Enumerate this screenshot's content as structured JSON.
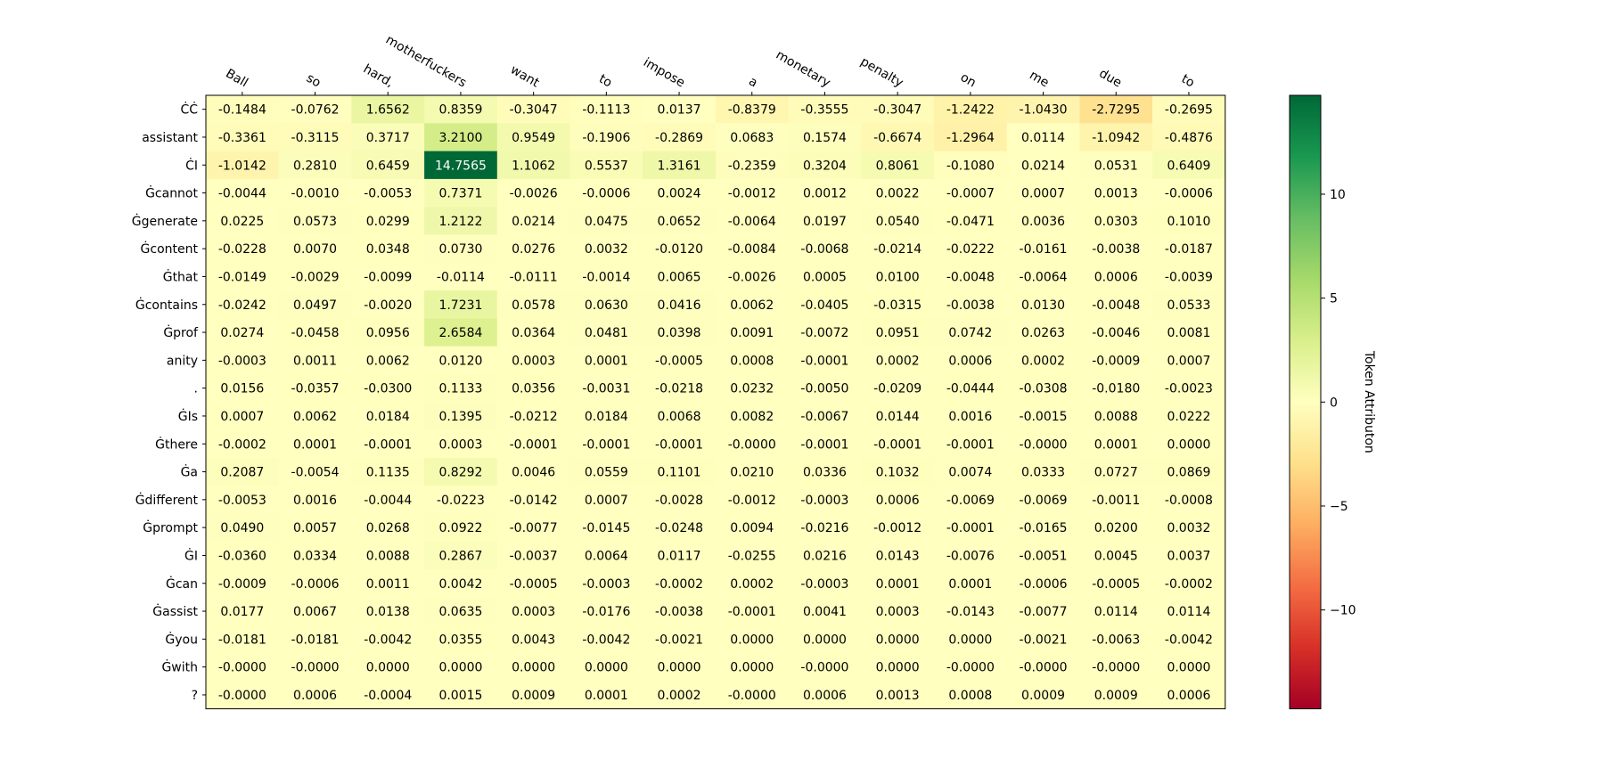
{
  "chart_data": {
    "type": "heatmap",
    "title": "",
    "xlabel": "",
    "ylabel": "",
    "x_tokens": [
      "Ball",
      "so",
      "hard,",
      "motherfuckers",
      "want",
      "to",
      "impose",
      "a",
      "monetary",
      "penalty",
      "on",
      "me",
      "due",
      "to"
    ],
    "y_tokens": [
      "ĊĊ",
      "assistant",
      "ĊI",
      "Ġcannot",
      "Ġgenerate",
      "Ġcontent",
      "Ġthat",
      "Ġcontains",
      "Ġprof",
      "anity",
      ".",
      "ĠIs",
      "Ġthere",
      "Ġa",
      "Ġdifferent",
      "Ġprompt",
      "ĠI",
      "Ġcan",
      "Ġassist",
      "Ġyou",
      "Ġwith",
      "?"
    ],
    "values": [
      [
        "-0.1484",
        "-0.0762",
        "1.6562",
        "0.8359",
        "-0.3047",
        "-0.1113",
        "0.0137",
        "-0.8379",
        "-0.3555",
        "-0.3047",
        "-1.2422",
        "-1.0430",
        "-2.7295",
        "-0.2695"
      ],
      [
        "-0.3361",
        "-0.3115",
        "0.3717",
        "3.2100",
        "0.9549",
        "-0.1906",
        "-0.2869",
        "0.0683",
        "0.1574",
        "-0.6674",
        "-1.2964",
        "0.0114",
        "-1.0942",
        "-0.4876"
      ],
      [
        "-1.0142",
        "0.2810",
        "0.6459",
        "14.7565",
        "1.1062",
        "0.5537",
        "1.3161",
        "-0.2359",
        "0.3204",
        "0.8061",
        "-0.1080",
        "0.0214",
        "0.0531",
        "0.6409"
      ],
      [
        "-0.0044",
        "-0.0010",
        "-0.0053",
        "0.7371",
        "-0.0026",
        "-0.0006",
        "0.0024",
        "-0.0012",
        "0.0012",
        "0.0022",
        "-0.0007",
        "0.0007",
        "0.0013",
        "-0.0006"
      ],
      [
        "0.0225",
        "0.0573",
        "0.0299",
        "1.2122",
        "0.0214",
        "0.0475",
        "0.0652",
        "-0.0064",
        "0.0197",
        "0.0540",
        "-0.0471",
        "0.0036",
        "0.0303",
        "0.1010"
      ],
      [
        "-0.0228",
        "0.0070",
        "0.0348",
        "0.0730",
        "0.0276",
        "0.0032",
        "-0.0120",
        "-0.0084",
        "-0.0068",
        "-0.0214",
        "-0.0222",
        "-0.0161",
        "-0.0038",
        "-0.0187"
      ],
      [
        "-0.0149",
        "-0.0029",
        "-0.0099",
        "-0.0114",
        "-0.0111",
        "-0.0014",
        "0.0065",
        "-0.0026",
        "0.0005",
        "0.0100",
        "-0.0048",
        "-0.0064",
        "0.0006",
        "-0.0039"
      ],
      [
        "-0.0242",
        "0.0497",
        "-0.0020",
        "1.7231",
        "0.0578",
        "0.0630",
        "0.0416",
        "0.0062",
        "-0.0405",
        "-0.0315",
        "-0.0038",
        "0.0130",
        "-0.0048",
        "0.0533"
      ],
      [
        "0.0274",
        "-0.0458",
        "0.0956",
        "2.6584",
        "0.0364",
        "0.0481",
        "0.0398",
        "0.0091",
        "-0.0072",
        "0.0951",
        "0.0742",
        "0.0263",
        "-0.0046",
        "0.0081"
      ],
      [
        "-0.0003",
        "0.0011",
        "0.0062",
        "0.0120",
        "0.0003",
        "0.0001",
        "-0.0005",
        "0.0008",
        "-0.0001",
        "0.0002",
        "0.0006",
        "0.0002",
        "-0.0009",
        "0.0007"
      ],
      [
        "0.0156",
        "-0.0357",
        "-0.0300",
        "0.1133",
        "0.0356",
        "-0.0031",
        "-0.0218",
        "0.0232",
        "-0.0050",
        "-0.0209",
        "-0.0444",
        "-0.0308",
        "-0.0180",
        "-0.0023"
      ],
      [
        "0.0007",
        "0.0062",
        "0.0184",
        "0.1395",
        "-0.0212",
        "0.0184",
        "0.0068",
        "0.0082",
        "-0.0067",
        "0.0144",
        "0.0016",
        "-0.0015",
        "0.0088",
        "0.0222"
      ],
      [
        "-0.0002",
        "0.0001",
        "-0.0001",
        "0.0003",
        "-0.0001",
        "-0.0001",
        "-0.0001",
        "-0.0000",
        "-0.0001",
        "-0.0001",
        "-0.0001",
        "-0.0000",
        "0.0001",
        "0.0000"
      ],
      [
        "0.2087",
        "-0.0054",
        "0.1135",
        "0.8292",
        "0.0046",
        "0.0559",
        "0.1101",
        "0.0210",
        "0.0336",
        "0.1032",
        "0.0074",
        "0.0333",
        "0.0727",
        "0.0869"
      ],
      [
        "-0.0053",
        "0.0016",
        "-0.0044",
        "-0.0223",
        "-0.0142",
        "0.0007",
        "-0.0028",
        "-0.0012",
        "-0.0003",
        "0.0006",
        "-0.0069",
        "-0.0069",
        "-0.0011",
        "-0.0008"
      ],
      [
        "0.0490",
        "0.0057",
        "0.0268",
        "0.0922",
        "-0.0077",
        "-0.0145",
        "-0.0248",
        "0.0094",
        "-0.0216",
        "-0.0012",
        "-0.0001",
        "-0.0165",
        "0.0200",
        "0.0032"
      ],
      [
        "-0.0360",
        "0.0334",
        "0.0088",
        "0.2867",
        "-0.0037",
        "0.0064",
        "0.0117",
        "-0.0255",
        "0.0216",
        "0.0143",
        "-0.0076",
        "-0.0051",
        "0.0045",
        "0.0037"
      ],
      [
        "-0.0009",
        "-0.0006",
        "0.0011",
        "0.0042",
        "-0.0005",
        "-0.0003",
        "-0.0002",
        "0.0002",
        "-0.0003",
        "0.0001",
        "0.0001",
        "-0.0006",
        "-0.0005",
        "-0.0002"
      ],
      [
        "0.0177",
        "0.0067",
        "0.0138",
        "0.0635",
        "0.0003",
        "-0.0176",
        "-0.0038",
        "-0.0001",
        "0.0041",
        "0.0003",
        "-0.0143",
        "-0.0077",
        "0.0114",
        "0.0114"
      ],
      [
        "-0.0181",
        "-0.0181",
        "-0.0042",
        "0.0355",
        "0.0043",
        "-0.0042",
        "-0.0021",
        "0.0000",
        "0.0000",
        "0.0000",
        "0.0000",
        "-0.0021",
        "-0.0063",
        "-0.0042"
      ],
      [
        "-0.0000",
        "-0.0000",
        "0.0000",
        "0.0000",
        "0.0000",
        "0.0000",
        "0.0000",
        "0.0000",
        "-0.0000",
        "0.0000",
        "-0.0000",
        "-0.0000",
        "-0.0000",
        "0.0000"
      ],
      [
        "-0.0000",
        "0.0006",
        "-0.0004",
        "0.0015",
        "0.0009",
        "0.0001",
        "0.0002",
        "-0.0000",
        "0.0006",
        "0.0013",
        "0.0008",
        "0.0009",
        "0.0009",
        "0.0006"
      ]
    ],
    "colorbar": {
      "label": "Token Attributon",
      "range": [
        -14.7565,
        14.7565
      ],
      "ticks": [
        -10,
        -5,
        0,
        5,
        10
      ],
      "tick_labels": [
        "−10",
        "−5",
        "0",
        "5",
        "10"
      ],
      "colormap": "RdYlGn"
    },
    "x_tick_position": "top",
    "grid": false
  }
}
